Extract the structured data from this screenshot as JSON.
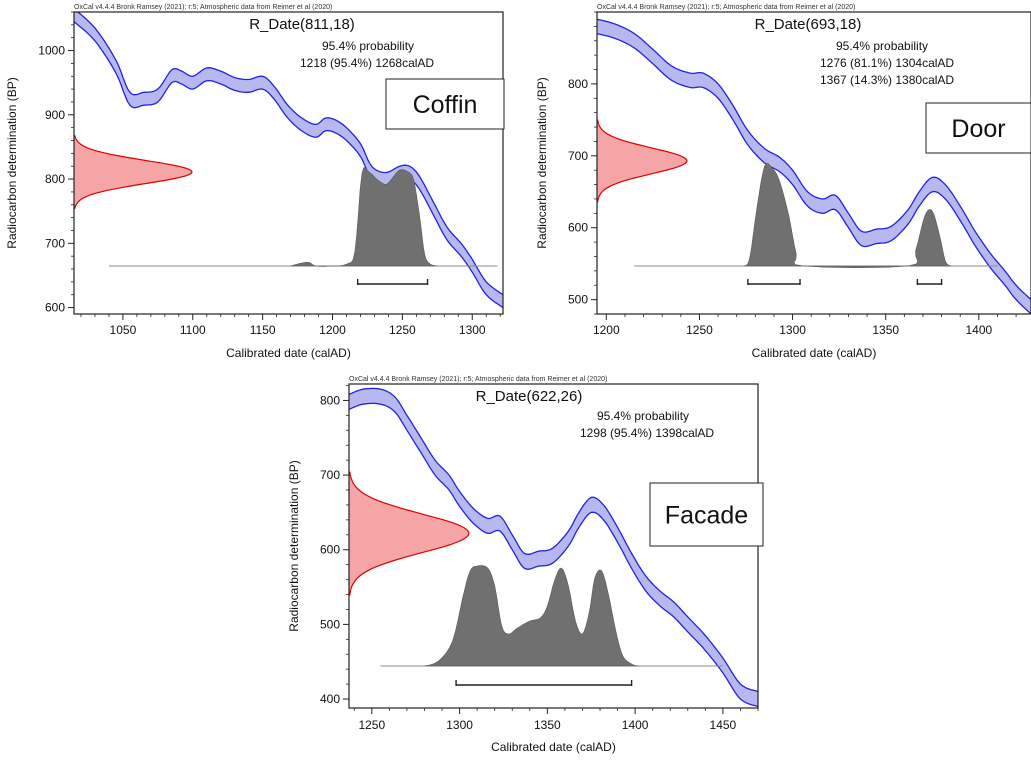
{
  "chart_data": [
    {
      "type": "area",
      "credit": "OxCal v4.4.4 Bronk Ramsey (2021); r:5; Atmospheric data from Reimer et al (2020)",
      "title": "R_Date(811,18)",
      "probability_heading": "95.4% probability",
      "ranges": [
        {
          "text": "1218 (95.4%) 1268calAD",
          "from": 1218,
          "to": 1268
        }
      ],
      "label": "Coffin",
      "xlabel": "Calibrated date (calAD)",
      "ylabel": "Radiocarbon determination (BP)",
      "xlim": [
        1015,
        1322
      ],
      "ylim": [
        590,
        1060
      ],
      "xticks": [
        1050,
        1100,
        1150,
        1200,
        1250,
        1300
      ],
      "yticks": [
        600,
        700,
        800,
        900,
        1000
      ],
      "colors": {
        "curve_fill": "#b8b8f0",
        "curve_edge": "#2222dd",
        "likelihood_fill": "#f5a5a5",
        "likelihood_edge": "#dd0000",
        "posterior": "#707070"
      },
      "measurement": {
        "mean": 811,
        "sigma": 18
      },
      "calibration_curve": [
        [
          1015,
          1055
        ],
        [
          1030,
          1025
        ],
        [
          1045,
          975
        ],
        [
          1055,
          925
        ],
        [
          1065,
          925
        ],
        [
          1075,
          930
        ],
        [
          1085,
          960
        ],
        [
          1092,
          958
        ],
        [
          1100,
          950
        ],
        [
          1110,
          963
        ],
        [
          1120,
          958
        ],
        [
          1130,
          948
        ],
        [
          1140,
          945
        ],
        [
          1150,
          950
        ],
        [
          1158,
          935
        ],
        [
          1168,
          905
        ],
        [
          1178,
          885
        ],
        [
          1188,
          875
        ],
        [
          1195,
          885
        ],
        [
          1202,
          882
        ],
        [
          1210,
          870
        ],
        [
          1220,
          845
        ],
        [
          1228,
          810
        ],
        [
          1238,
          800
        ],
        [
          1248,
          810
        ],
        [
          1255,
          810
        ],
        [
          1262,
          795
        ],
        [
          1272,
          755
        ],
        [
          1282,
          715
        ],
        [
          1292,
          690
        ],
        [
          1300,
          665
        ],
        [
          1310,
          630
        ],
        [
          1322,
          610
        ]
      ],
      "curve_band_halfwidth": 10,
      "posterior": [
        [
          1170,
          0
        ],
        [
          1182,
          0.04
        ],
        [
          1188,
          0
        ],
        [
          1200,
          0
        ],
        [
          1210,
          0.02
        ],
        [
          1216,
          0.15
        ],
        [
          1221,
          0.96
        ],
        [
          1226,
          0.98
        ],
        [
          1232,
          0.9
        ],
        [
          1238,
          0.85
        ],
        [
          1242,
          0.9
        ],
        [
          1248,
          1
        ],
        [
          1254,
          0.98
        ],
        [
          1258,
          0.9
        ],
        [
          1262,
          0.55
        ],
        [
          1266,
          0.12
        ],
        [
          1270,
          0.02
        ],
        [
          1275,
          0
        ]
      ],
      "posterior_baseline_x": [
        1040,
        1318
      ]
    },
    {
      "type": "area",
      "credit": "OxCal v4.4.4 Bronk Ramsey (2021); r:5; Atmospheric data from Reimer et al (2020)",
      "title": "R_Date(693,18)",
      "probability_heading": "95.4% probability",
      "ranges": [
        {
          "text": "1276 (81.1%) 1304calAD",
          "from": 1276,
          "to": 1304
        },
        {
          "text": "1367 (14.3%) 1380calAD",
          "from": 1367,
          "to": 1380
        }
      ],
      "label": "Door",
      "xlabel": "Calibrated date (calAD)",
      "ylabel": "Radiocarbon determination (BP)",
      "xlim": [
        1195,
        1428
      ],
      "ylim": [
        480,
        900
      ],
      "xticks": [
        1200,
        1250,
        1300,
        1350,
        1400
      ],
      "yticks": [
        500,
        600,
        700,
        800
      ],
      "colors": {
        "curve_fill": "#b8b8f0",
        "curve_edge": "#2222dd",
        "likelihood_fill": "#f5a5a5",
        "likelihood_edge": "#dd0000",
        "posterior": "#707070"
      },
      "measurement": {
        "mean": 693,
        "sigma": 18
      },
      "calibration_curve": [
        [
          1195,
          880
        ],
        [
          1205,
          873
        ],
        [
          1215,
          860
        ],
        [
          1225,
          838
        ],
        [
          1235,
          815
        ],
        [
          1245,
          805
        ],
        [
          1252,
          805
        ],
        [
          1260,
          790
        ],
        [
          1268,
          760
        ],
        [
          1276,
          725
        ],
        [
          1285,
          700
        ],
        [
          1293,
          688
        ],
        [
          1300,
          670
        ],
        [
          1308,
          640
        ],
        [
          1316,
          630
        ],
        [
          1323,
          635
        ],
        [
          1330,
          610
        ],
        [
          1337,
          585
        ],
        [
          1345,
          588
        ],
        [
          1353,
          592
        ],
        [
          1362,
          615
        ],
        [
          1368,
          640
        ],
        [
          1375,
          660
        ],
        [
          1382,
          650
        ],
        [
          1390,
          620
        ],
        [
          1398,
          585
        ],
        [
          1406,
          555
        ],
        [
          1414,
          530
        ],
        [
          1420,
          510
        ],
        [
          1428,
          490
        ]
      ],
      "curve_band_halfwidth": 10,
      "posterior": [
        [
          1274,
          0
        ],
        [
          1277,
          0.08
        ],
        [
          1281,
          0.6
        ],
        [
          1285,
          1
        ],
        [
          1289,
          0.98
        ],
        [
          1293,
          0.85
        ],
        [
          1298,
          0.5
        ],
        [
          1302,
          0.12
        ],
        [
          1306,
          0
        ],
        [
          1362,
          0
        ],
        [
          1366,
          0.15
        ],
        [
          1371,
          0.5
        ],
        [
          1375,
          0.55
        ],
        [
          1379,
          0.3
        ],
        [
          1382,
          0.05
        ],
        [
          1385,
          0
        ]
      ],
      "posterior_baseline_x": [
        1215,
        1410
      ]
    },
    {
      "type": "area",
      "credit": "OxCal v4.4.4 Bronk Ramsey (2021); r:5; Atmospheric data from Reimer et al (2020)",
      "title": "R_Date(622,26)",
      "probability_heading": "95.4% probability",
      "ranges": [
        {
          "text": "1298 (95.4%) 1398calAD",
          "from": 1298,
          "to": 1398
        }
      ],
      "label": "Facade",
      "xlabel": "Calibrated date (calAD)",
      "ylabel": "Radiocarbon determination (BP)",
      "xlim": [
        1237,
        1470
      ],
      "ylim": [
        388,
        822
      ],
      "xticks": [
        1250,
        1300,
        1350,
        1400,
        1450
      ],
      "yticks": [
        400,
        500,
        600,
        700,
        800
      ],
      "colors": {
        "curve_fill": "#b8b8f0",
        "curve_edge": "#2222dd",
        "likelihood_fill": "#f5a5a5",
        "likelihood_edge": "#dd0000",
        "posterior": "#707070"
      },
      "measurement": {
        "mean": 622,
        "sigma": 26
      },
      "calibration_curve": [
        [
          1237,
          798
        ],
        [
          1245,
          805
        ],
        [
          1255,
          805
        ],
        [
          1263,
          795
        ],
        [
          1270,
          770
        ],
        [
          1278,
          740
        ],
        [
          1286,
          710
        ],
        [
          1294,
          690
        ],
        [
          1300,
          668
        ],
        [
          1308,
          645
        ],
        [
          1316,
          632
        ],
        [
          1323,
          635
        ],
        [
          1330,
          610
        ],
        [
          1337,
          585
        ],
        [
          1345,
          588
        ],
        [
          1353,
          592
        ],
        [
          1362,
          615
        ],
        [
          1368,
          640
        ],
        [
          1375,
          660
        ],
        [
          1382,
          650
        ],
        [
          1390,
          620
        ],
        [
          1398,
          585
        ],
        [
          1406,
          555
        ],
        [
          1414,
          535
        ],
        [
          1422,
          520
        ],
        [
          1430,
          500
        ],
        [
          1440,
          475
        ],
        [
          1450,
          445
        ],
        [
          1460,
          410
        ],
        [
          1470,
          400
        ]
      ],
      "curve_band_halfwidth": 10,
      "posterior": [
        [
          1280,
          0
        ],
        [
          1288,
          0.05
        ],
        [
          1296,
          0.25
        ],
        [
          1302,
          0.7
        ],
        [
          1306,
          0.95
        ],
        [
          1310,
          1
        ],
        [
          1316,
          0.98
        ],
        [
          1320,
          0.8
        ],
        [
          1324,
          0.4
        ],
        [
          1328,
          0.32
        ],
        [
          1333,
          0.38
        ],
        [
          1340,
          0.45
        ],
        [
          1346,
          0.48
        ],
        [
          1350,
          0.6
        ],
        [
          1354,
          0.85
        ],
        [
          1358,
          0.98
        ],
        [
          1362,
          0.8
        ],
        [
          1366,
          0.45
        ],
        [
          1370,
          0.32
        ],
        [
          1374,
          0.55
        ],
        [
          1377,
          0.88
        ],
        [
          1381,
          0.95
        ],
        [
          1385,
          0.7
        ],
        [
          1389,
          0.35
        ],
        [
          1393,
          0.1
        ],
        [
          1398,
          0.02
        ],
        [
          1402,
          0
        ]
      ],
      "posterior_baseline_x": [
        1255,
        1450
      ]
    }
  ]
}
